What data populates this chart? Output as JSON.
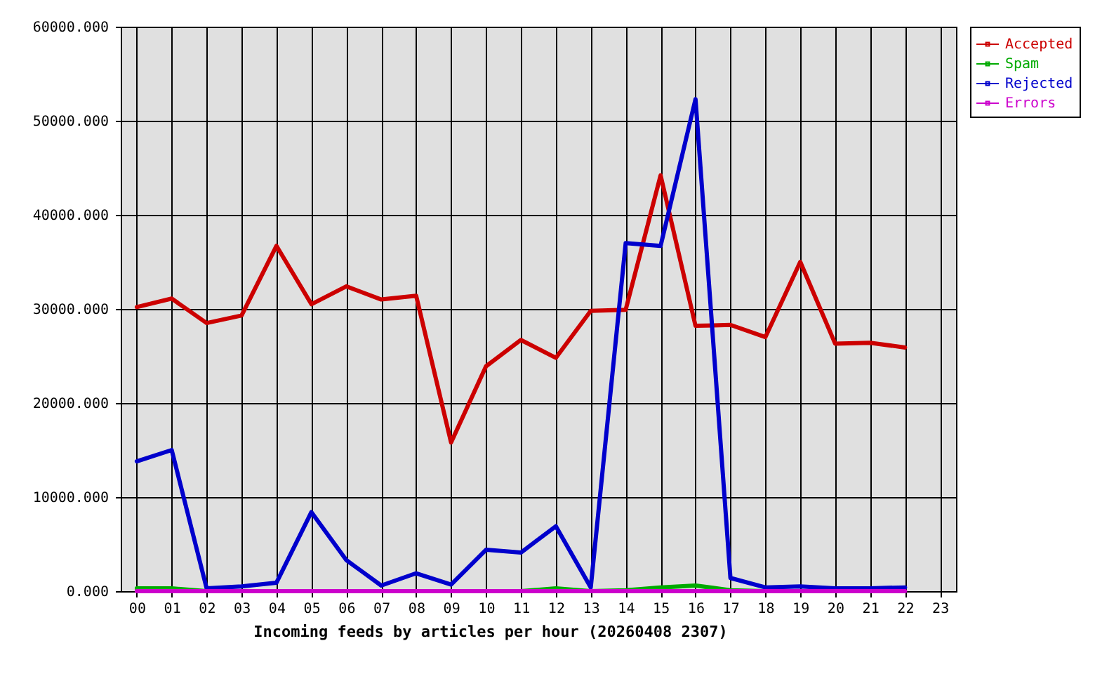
{
  "chart_data": {
    "type": "line",
    "xlabel": "Incoming feeds by articles per hour (20260408 2307)",
    "categories": [
      "00",
      "01",
      "02",
      "03",
      "04",
      "05",
      "06",
      "07",
      "08",
      "09",
      "10",
      "11",
      "12",
      "13",
      "14",
      "15",
      "16",
      "17",
      "18",
      "19",
      "20",
      "21",
      "22",
      "23"
    ],
    "ylim": [
      0,
      60000
    ],
    "yticks": [
      {
        "value": 0,
        "label": "0.000"
      },
      {
        "value": 10000,
        "label": "10000.000"
      },
      {
        "value": 20000,
        "label": "20000.000"
      },
      {
        "value": 30000,
        "label": "30000.000"
      },
      {
        "value": 40000,
        "label": "40000.000"
      },
      {
        "value": 50000,
        "label": "50000.000"
      },
      {
        "value": 60000,
        "label": "60000.000"
      }
    ],
    "grid": true,
    "legend": "top right",
    "series": [
      {
        "name": "Accepted",
        "color": "#cc0000",
        "values": [
          30200,
          31100,
          28500,
          29300,
          36700,
          30500,
          32400,
          31000,
          31400,
          15800,
          23900,
          26700,
          24800,
          29800,
          29900,
          44200,
          28200,
          28300,
          27000,
          35000,
          26300,
          26400,
          25900,
          null
        ]
      },
      {
        "name": "Spam",
        "color": "#00aa00",
        "values": [
          300,
          300,
          0,
          null,
          null,
          null,
          null,
          null,
          null,
          null,
          null,
          0,
          300,
          0,
          100,
          400,
          600,
          100,
          0,
          null,
          null,
          null,
          null,
          null
        ]
      },
      {
        "name": "Rejected",
        "color": "#0000cc",
        "values": [
          13800,
          15000,
          300,
          500,
          900,
          8400,
          3300,
          600,
          1900,
          700,
          4400,
          4100,
          6900,
          400,
          37000,
          36700,
          52300,
          1400,
          400,
          500,
          300,
          300,
          400,
          null
        ]
      },
      {
        "name": "Errors",
        "color": "#cc00cc",
        "values": [
          0,
          0,
          0,
          0,
          0,
          0,
          0,
          0,
          0,
          0,
          0,
          0,
          0,
          0,
          0,
          0,
          0,
          0,
          0,
          0,
          0,
          0,
          0,
          null
        ]
      }
    ]
  }
}
